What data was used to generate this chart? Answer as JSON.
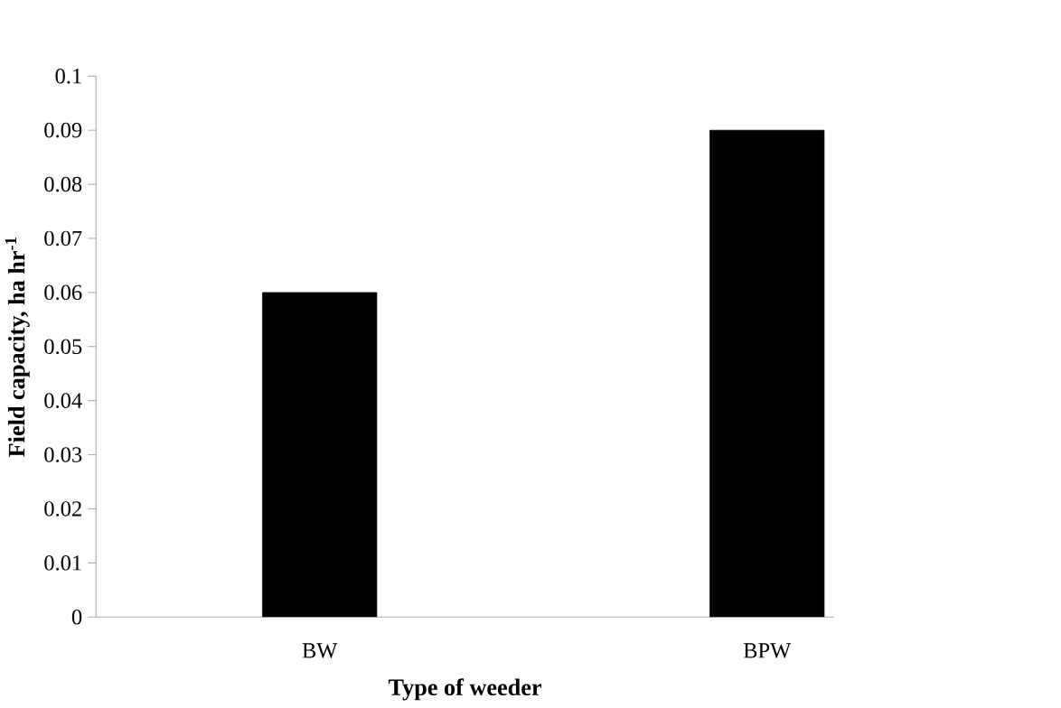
{
  "chart_data": {
    "type": "bar",
    "xlabel": "Type of weeder",
    "ylabel": "Field capacity, ha hr$^{-1}$",
    "categories": [
      "BW",
      "BPW"
    ],
    "values": [
      0.06,
      0.09
    ],
    "color": "#000000",
    "ylim": [
      0,
      0.1
    ],
    "yticks": [
      0,
      0.01,
      0.02,
      0.03,
      0.04,
      0.05,
      0.06,
      0.07,
      0.08,
      0.09,
      0.1
    ]
  }
}
